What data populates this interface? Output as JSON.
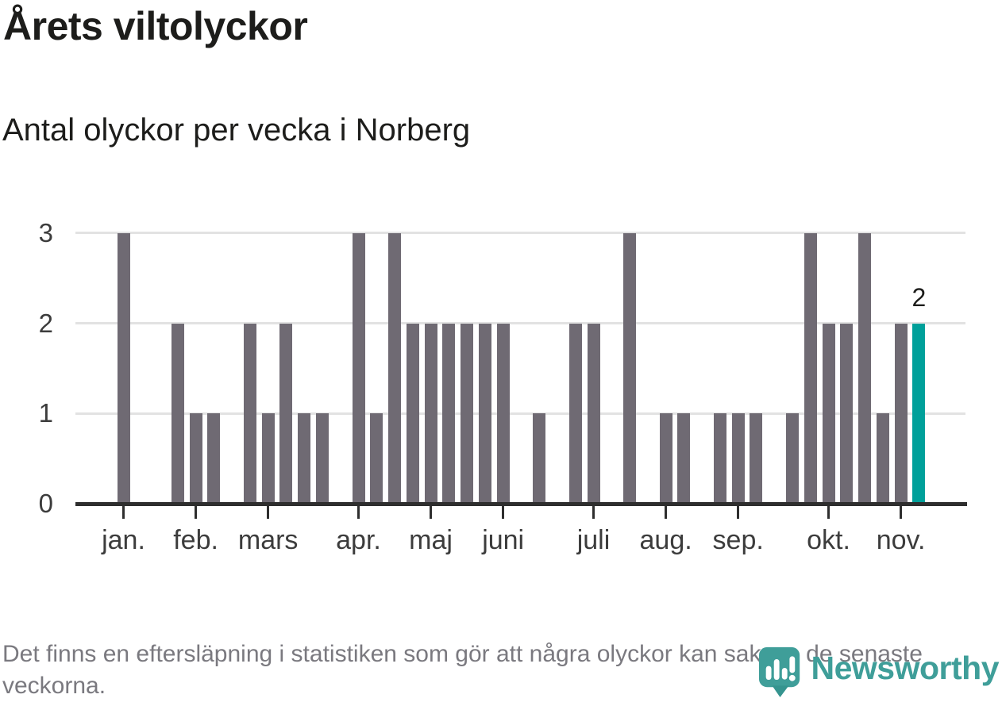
{
  "title": "Årets viltolyckor",
  "subtitle": "Antal olyckor per vecka i Norberg",
  "footer_note": "Det finns en eftersläpning i statistiken som gör att några olyckor kan saknas de senaste veckorna.",
  "branding": {
    "name": "Newsworthy"
  },
  "colors": {
    "bar": "#6f6a73",
    "highlight": "#00a09a",
    "gridline": "#e2e2e2",
    "axis": "#2e2e2e",
    "tick_label": "#3c3c3c",
    "footer_text": "#7a797f",
    "brand": "#3f9e99",
    "brand_dark": "#35948f"
  },
  "chart_data": {
    "type": "bar",
    "title": "Årets viltolyckor",
    "subtitle": "Antal olyckor per vecka i Norberg",
    "xlabel": "",
    "ylabel": "",
    "x_unit": "week",
    "weeks": 45,
    "values": [
      3,
      0,
      0,
      2,
      1,
      1,
      0,
      2,
      1,
      2,
      1,
      1,
      0,
      3,
      1,
      3,
      2,
      2,
      2,
      2,
      2,
      2,
      0,
      1,
      0,
      2,
      2,
      0,
      3,
      0,
      1,
      1,
      0,
      1,
      1,
      1,
      0,
      1,
      3,
      2,
      2,
      3,
      1,
      2,
      2
    ],
    "highlight_index": 44,
    "highlight_label": "2",
    "y_ticks": [
      0,
      1,
      2,
      3
    ],
    "ylim": [
      0,
      3
    ],
    "grid": true,
    "legend": "none",
    "month_ticks": [
      {
        "label": "jan.",
        "week": 0
      },
      {
        "label": "feb.",
        "week": 4
      },
      {
        "label": "mars",
        "week": 8
      },
      {
        "label": "apr.",
        "week": 13
      },
      {
        "label": "maj",
        "week": 17
      },
      {
        "label": "juni",
        "week": 21
      },
      {
        "label": "juli",
        "week": 26
      },
      {
        "label": "aug.",
        "week": 30
      },
      {
        "label": "sep.",
        "week": 34
      },
      {
        "label": "okt.",
        "week": 39
      },
      {
        "label": "nov.",
        "week": 43
      }
    ]
  }
}
